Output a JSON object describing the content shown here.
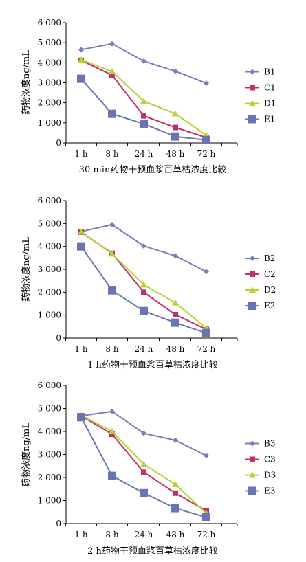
{
  "chart_data": [
    {
      "type": "line",
      "title": "30 min药物干预血浆百草枯浓度比较",
      "xlabel": "",
      "ylabel": "药物浓度ng/mL",
      "ylim": [
        0,
        6000
      ],
      "yticks": [
        "0",
        "1 000",
        "2 000",
        "3 000",
        "4 000",
        "5 000",
        "6 000"
      ],
      "categories": [
        "1 h",
        "8 h",
        "24 h",
        "48 h",
        "72 h"
      ],
      "legend": "right",
      "grid": false,
      "series": [
        {
          "name": "B1",
          "color": "#7b7bbd",
          "marker": "diamond",
          "values": [
            4650,
            4950,
            4080,
            3580,
            2980
          ]
        },
        {
          "name": "C1",
          "color": "#c0306a",
          "marker": "square",
          "values": [
            4120,
            3380,
            1350,
            770,
            270
          ]
        },
        {
          "name": "D1",
          "color": "#b5d334",
          "marker": "triangle",
          "values": [
            4150,
            3560,
            2080,
            1460,
            380
          ]
        },
        {
          "name": "E1",
          "color": "#6b74b3",
          "marker": "square-lg",
          "values": [
            3200,
            1450,
            950,
            320,
            140
          ]
        }
      ]
    },
    {
      "type": "line",
      "title": "1 h药物干预血浆百草枯浓度比较",
      "xlabel": "",
      "ylabel": "药物浓度ng/mL",
      "ylim": [
        0,
        6000
      ],
      "yticks": [
        "0",
        "1 000",
        "2 000",
        "3 000",
        "4 000",
        "5 000",
        "6 000"
      ],
      "categories": [
        "1 h",
        "8 h",
        "24 h",
        "48 h",
        "72 h"
      ],
      "legend": "right",
      "grid": false,
      "series": [
        {
          "name": "B2",
          "color": "#7b7bbd",
          "marker": "diamond",
          "values": [
            4650,
            4950,
            4020,
            3590,
            2900
          ]
        },
        {
          "name": "C2",
          "color": "#c0306a",
          "marker": "square",
          "values": [
            4620,
            3700,
            2000,
            1020,
            380
          ]
        },
        {
          "name": "D2",
          "color": "#b5d334",
          "marker": "triangle",
          "values": [
            4640,
            3680,
            2330,
            1540,
            430
          ]
        },
        {
          "name": "E2",
          "color": "#6b74b3",
          "marker": "square-lg",
          "values": [
            4000,
            2080,
            1180,
            670,
            220
          ]
        }
      ]
    },
    {
      "type": "line",
      "title": "2 h药物干预血浆百草枯浓度比较",
      "xlabel": "",
      "ylabel": "药物浓度ng/mL",
      "ylim": [
        0,
        6000
      ],
      "yticks": [
        "0",
        "1 000",
        "2 000",
        "3 000",
        "4 000",
        "5 000",
        "6 000"
      ],
      "categories": [
        "1 h",
        "8 h",
        "24 h",
        "48 h",
        "72 h"
      ],
      "legend": "right",
      "grid": false,
      "series": [
        {
          "name": "B3",
          "color": "#7b7bbd",
          "marker": "diamond",
          "values": [
            4680,
            4870,
            3920,
            3620,
            2950
          ]
        },
        {
          "name": "C3",
          "color": "#c0306a",
          "marker": "square",
          "values": [
            4680,
            3880,
            2230,
            1320,
            560
          ]
        },
        {
          "name": "D3",
          "color": "#b5d334",
          "marker": "triangle",
          "values": [
            4700,
            4000,
            2580,
            1700,
            440
          ]
        },
        {
          "name": "E3",
          "color": "#6b74b3",
          "marker": "square-lg",
          "values": [
            4620,
            2070,
            1320,
            670,
            270
          ]
        }
      ]
    }
  ]
}
